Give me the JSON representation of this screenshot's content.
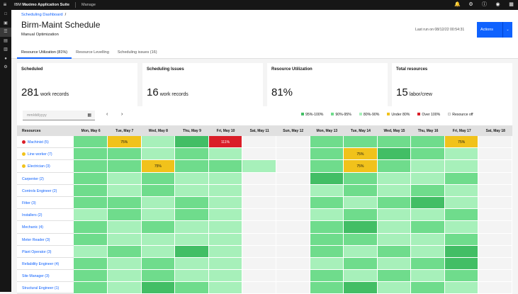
{
  "topbar": {
    "brand_prefix": "IBM",
    "brand_name": "Maximo Application Suite",
    "section": "Manage",
    "menu_icon": "≡",
    "icons": [
      "bell-icon",
      "gear-icon",
      "help-icon",
      "user-icon",
      "apps-icon"
    ]
  },
  "sidenav": {
    "items": [
      "calendar-icon",
      "box-icon",
      "list-icon",
      "document-icon",
      "clipboard-icon",
      "people-icon",
      "settings-icon"
    ]
  },
  "header": {
    "breadcrumb": "Scheduling Dashboard",
    "breadcrumb_sep": "/",
    "title": "Birm-Maint Schedule",
    "subtitle": "Manual Optimization",
    "last_run": "Last run on 08/12/22 00:54:31",
    "actions_label": "Actions"
  },
  "tabs": [
    {
      "label": "Resource Utilization (81%)",
      "active": true
    },
    {
      "label": "Resource Levelling",
      "active": false
    },
    {
      "label": "Scheduling issues (16)",
      "active": false
    }
  ],
  "cards": [
    {
      "title": "Scheduled",
      "value": "281",
      "unit": "work records"
    },
    {
      "title": "Scheduling Issues",
      "value": "16",
      "unit": "work records"
    },
    {
      "title": "Resource Utilization",
      "value": "81%",
      "unit": ""
    },
    {
      "title": "Total resources",
      "value": "15",
      "unit": "labor/crew"
    }
  ],
  "toolbar": {
    "date_placeholder": "mm/dd/yyyy",
    "prev": "‹",
    "next": "›"
  },
  "legend": [
    {
      "label": "95%-100%",
      "color": "#42be65"
    },
    {
      "label": "90%-95%",
      "color": "#6fdc8c"
    },
    {
      "label": "80%-90%",
      "color": "#a7f0ba"
    },
    {
      "label": "Under 80%",
      "color": "#f1c21b"
    },
    {
      "label": "Over 100%",
      "color": "#da1e28"
    },
    {
      "label": "Resource off",
      "color": "#f4f4f4"
    }
  ],
  "colors": {
    "a": "#42be65",
    "b": "#6fdc8c",
    "c": "#a7f0ba",
    "y": "#f1c21b",
    "r": "#da1e28",
    "o": "#f4f4f4"
  },
  "grid": {
    "resources_header": "Resources",
    "days": [
      "Mon, May 6",
      "Tue, May 7",
      "Wed, May 8",
      "Thu, May 9",
      "Fri, May 10",
      "Sat, May 11",
      "Sun, May 12",
      "Mon, May 13",
      "Tue, May 14",
      "Wed, May 15",
      "Thu, May 16",
      "Fri, May 17",
      "Sat, May 18"
    ],
    "rows": [
      {
        "name": "Machinist (5)",
        "status": "#da1e28",
        "cells": [
          "b",
          "y",
          "c",
          "a",
          "r",
          "o",
          "o",
          "b",
          "b",
          "b",
          "b",
          "y",
          "o"
        ],
        "labels": {
          "1": "75%",
          "4": "111%",
          "11": "75%"
        }
      },
      {
        "name": "Line worker (7)",
        "status": "#f1c21b",
        "cells": [
          "b",
          "b",
          "c",
          "b",
          "c",
          "o",
          "o",
          "b",
          "y",
          "a",
          "b",
          "c",
          "o"
        ],
        "labels": {
          "8": "75%"
        }
      },
      {
        "name": "Electrician (3)",
        "status": "#f1c21b",
        "cells": [
          "b",
          "b",
          "y",
          "b",
          "b",
          "c",
          "o",
          "b",
          "y",
          "b",
          "c",
          "c",
          "o"
        ],
        "labels": {
          "2": "75%",
          "8": "75%"
        }
      },
      {
        "name": "Carpenter (2)",
        "status": "",
        "cells": [
          "b",
          "c",
          "b",
          "c",
          "c",
          "o",
          "o",
          "a",
          "b",
          "c",
          "c",
          "b",
          "o"
        ],
        "labels": {}
      },
      {
        "name": "Controls Engineer (2)",
        "status": "",
        "cells": [
          "b",
          "c",
          "b",
          "c",
          "c",
          "o",
          "o",
          "c",
          "b",
          "c",
          "b",
          "c",
          "o"
        ],
        "labels": {}
      },
      {
        "name": "Fitter (3)",
        "status": "",
        "cells": [
          "b",
          "b",
          "c",
          "b",
          "c",
          "o",
          "o",
          "b",
          "c",
          "b",
          "a",
          "c",
          "o"
        ],
        "labels": {}
      },
      {
        "name": "Installers (2)",
        "status": "",
        "cells": [
          "c",
          "b",
          "c",
          "b",
          "c",
          "o",
          "o",
          "c",
          "b",
          "c",
          "c",
          "b",
          "o"
        ],
        "labels": {}
      },
      {
        "name": "Mechanic (4)",
        "status": "",
        "cells": [
          "b",
          "c",
          "b",
          "c",
          "c",
          "o",
          "o",
          "b",
          "a",
          "c",
          "b",
          "c",
          "o"
        ],
        "labels": {}
      },
      {
        "name": "Meter Reader (3)",
        "status": "",
        "cells": [
          "b",
          "c",
          "c",
          "c",
          "c",
          "o",
          "o",
          "b",
          "b",
          "c",
          "c",
          "b",
          "o"
        ],
        "labels": {}
      },
      {
        "name": "Plant Operator (3)",
        "status": "",
        "cells": [
          "c",
          "b",
          "c",
          "a",
          "c",
          "o",
          "o",
          "b",
          "c",
          "b",
          "c",
          "a",
          "o"
        ],
        "labels": {}
      },
      {
        "name": "Reliability Engineer (4)",
        "status": "",
        "cells": [
          "b",
          "c",
          "b",
          "c",
          "c",
          "o",
          "o",
          "c",
          "b",
          "c",
          "b",
          "a",
          "o"
        ],
        "labels": {}
      },
      {
        "name": "Site Manager (3)",
        "status": "",
        "cells": [
          "b",
          "c",
          "b",
          "c",
          "c",
          "o",
          "o",
          "b",
          "c",
          "b",
          "c",
          "b",
          "o"
        ],
        "labels": {}
      },
      {
        "name": "Structural Engineer (1)",
        "status": "",
        "cells": [
          "b",
          "c",
          "a",
          "b",
          "c",
          "o",
          "o",
          "b",
          "a",
          "c",
          "b",
          "c",
          "o"
        ],
        "labels": {}
      }
    ]
  }
}
